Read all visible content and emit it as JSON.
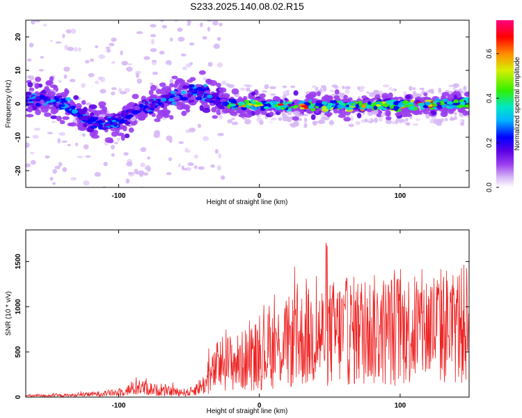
{
  "title": "S233.2025.140.08.02.R15",
  "chart_data": [
    {
      "type": "heatmap",
      "xlabel": "Height of straight line (km)",
      "ylabel": "Frequency (Hz)",
      "xlim": [
        -166,
        149
      ],
      "ylim": [
        -25,
        25
      ],
      "xticks": [
        "-100",
        "0",
        "100"
      ],
      "yticks": [
        "-20",
        "-10",
        "0",
        "10",
        "20"
      ],
      "colorbar": {
        "label": "Normalized spectral amplitude",
        "range": [
          0.0,
          0.75
        ],
        "ticks": [
          "0.0",
          "0.2",
          "0.4",
          "0.6"
        ],
        "colormap": [
          "#ffffff",
          "#d7b8f5",
          "#9a3cf0",
          "#5a00e6",
          "#0000ff",
          "#00b4ff",
          "#00e6c8",
          "#32f000",
          "#d7f000",
          "#ff8c00",
          "#ff0000",
          "#ff0080"
        ]
      },
      "ridge": [
        {
          "x": -160,
          "y": 1.5
        },
        {
          "x": -150,
          "y": 1.0
        },
        {
          "x": -140,
          "y": 0.0
        },
        {
          "x": -130,
          "y": -2.5
        },
        {
          "x": -120,
          "y": -5.0
        },
        {
          "x": -110,
          "y": -6.0
        },
        {
          "x": -100,
          "y": -5.0
        },
        {
          "x": -90,
          "y": -3.0
        },
        {
          "x": -80,
          "y": -1.0
        },
        {
          "x": -70,
          "y": 1.0
        },
        {
          "x": -60,
          "y": 2.5
        },
        {
          "x": -50,
          "y": 3.5
        },
        {
          "x": -40,
          "y": 4.0
        },
        {
          "x": -30,
          "y": 1.0
        },
        {
          "x": -25,
          "y": 0.0
        },
        {
          "x": 0,
          "y": -0.5
        },
        {
          "x": 50,
          "y": -0.5
        },
        {
          "x": 100,
          "y": -0.5
        },
        {
          "x": 145,
          "y": 0.0
        }
      ]
    },
    {
      "type": "line",
      "xlabel": "Height of straight line (km)",
      "ylabel": "SNR (10 * v/v)",
      "xlim": [
        -166,
        149
      ],
      "ylim": [
        0,
        1850
      ],
      "xticks": [
        "-100",
        "0",
        "100"
      ],
      "yticks": [
        "0",
        "500",
        "1000",
        "1500"
      ],
      "series_color": "#ee2222",
      "envelope": [
        {
          "x": -166,
          "mean": 15,
          "max": 40
        },
        {
          "x": -130,
          "mean": 20,
          "max": 60
        },
        {
          "x": -100,
          "mean": 50,
          "max": 120
        },
        {
          "x": -85,
          "mean": 110,
          "max": 310
        },
        {
          "x": -70,
          "mean": 70,
          "max": 200
        },
        {
          "x": -50,
          "mean": 50,
          "max": 150
        },
        {
          "x": -38,
          "mean": 150,
          "max": 500
        },
        {
          "x": -28,
          "mean": 380,
          "max": 980
        },
        {
          "x": -15,
          "mean": 380,
          "max": 760
        },
        {
          "x": 0,
          "mean": 480,
          "max": 980
        },
        {
          "x": 20,
          "mean": 600,
          "max": 1350
        },
        {
          "x": 40,
          "mean": 680,
          "max": 1830
        },
        {
          "x": 65,
          "mean": 730,
          "max": 1700
        },
        {
          "x": 90,
          "mean": 740,
          "max": 1520
        },
        {
          "x": 110,
          "mean": 760,
          "max": 1600
        },
        {
          "x": 130,
          "mean": 790,
          "max": 1400
        },
        {
          "x": 149,
          "mean": 800,
          "max": 1250
        }
      ]
    }
  ]
}
